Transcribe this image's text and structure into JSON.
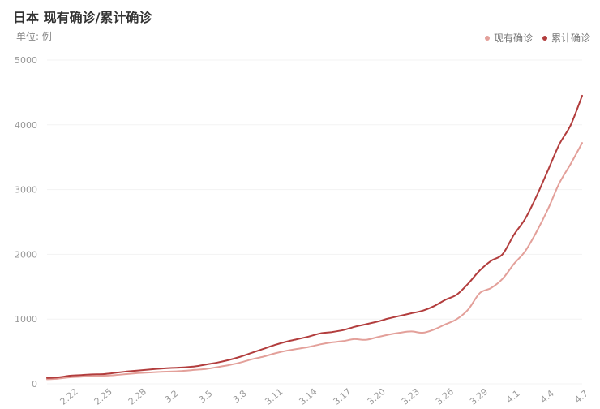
{
  "header": {
    "title": "日本 现有确诊/累计确诊",
    "unit": "单位: 例"
  },
  "legend": [
    {
      "label": "现有确诊",
      "color": "#e3a09a"
    },
    {
      "label": "累计确诊",
      "color": "#b23d3d"
    }
  ],
  "chart_data": {
    "type": "line",
    "title": "日本 现有确诊/累计确诊",
    "ylabel": "",
    "ylim": [
      0,
      5000
    ],
    "yticks": [
      0,
      1000,
      2000,
      3000,
      4000,
      5000
    ],
    "xtick_labels": [
      "2.22",
      "2.25",
      "2.28",
      "3.2",
      "3.5",
      "3.8",
      "3.11",
      "3.14",
      "3.17",
      "3.20",
      "3.23",
      "3.26",
      "3.29",
      "4.1",
      "4.4",
      "4.7"
    ],
    "x": [
      "2.20",
      "2.21",
      "2.22",
      "2.23",
      "2.24",
      "2.25",
      "2.26",
      "2.27",
      "2.28",
      "2.29",
      "3.1",
      "3.2",
      "3.3",
      "3.4",
      "3.5",
      "3.6",
      "3.7",
      "3.8",
      "3.9",
      "3.10",
      "3.11",
      "3.12",
      "3.13",
      "3.14",
      "3.15",
      "3.16",
      "3.17",
      "3.18",
      "3.19",
      "3.20",
      "3.21",
      "3.22",
      "3.23",
      "3.24",
      "3.25",
      "3.26",
      "3.27",
      "3.28",
      "3.29",
      "3.30",
      "3.31",
      "4.1",
      "4.2",
      "4.3",
      "4.4",
      "4.5",
      "4.6",
      "4.7"
    ],
    "series": [
      {
        "name": "现有确诊",
        "color": "#e3a09a",
        "values": [
          70,
          80,
          100,
          110,
          120,
          125,
          135,
          150,
          165,
          175,
          185,
          190,
          200,
          215,
          230,
          260,
          290,
          330,
          380,
          420,
          470,
          510,
          540,
          570,
          610,
          640,
          660,
          690,
          680,
          720,
          760,
          790,
          810,
          790,
          840,
          920,
          1000,
          1150,
          1400,
          1480,
          1620,
          1850,
          2050,
          2350,
          2700,
          3100,
          3400,
          3720
        ]
      },
      {
        "name": "累计确诊",
        "color": "#b23d3d",
        "values": [
          90,
          100,
          125,
          135,
          145,
          150,
          170,
          190,
          205,
          220,
          235,
          245,
          255,
          270,
          300,
          330,
          370,
          420,
          480,
          540,
          600,
          650,
          690,
          730,
          780,
          800,
          830,
          880,
          920,
          960,
          1010,
          1050,
          1090,
          1130,
          1200,
          1300,
          1380,
          1550,
          1750,
          1900,
          2000,
          2300,
          2550,
          2900,
          3300,
          3700,
          4000,
          4450
        ]
      }
    ]
  }
}
